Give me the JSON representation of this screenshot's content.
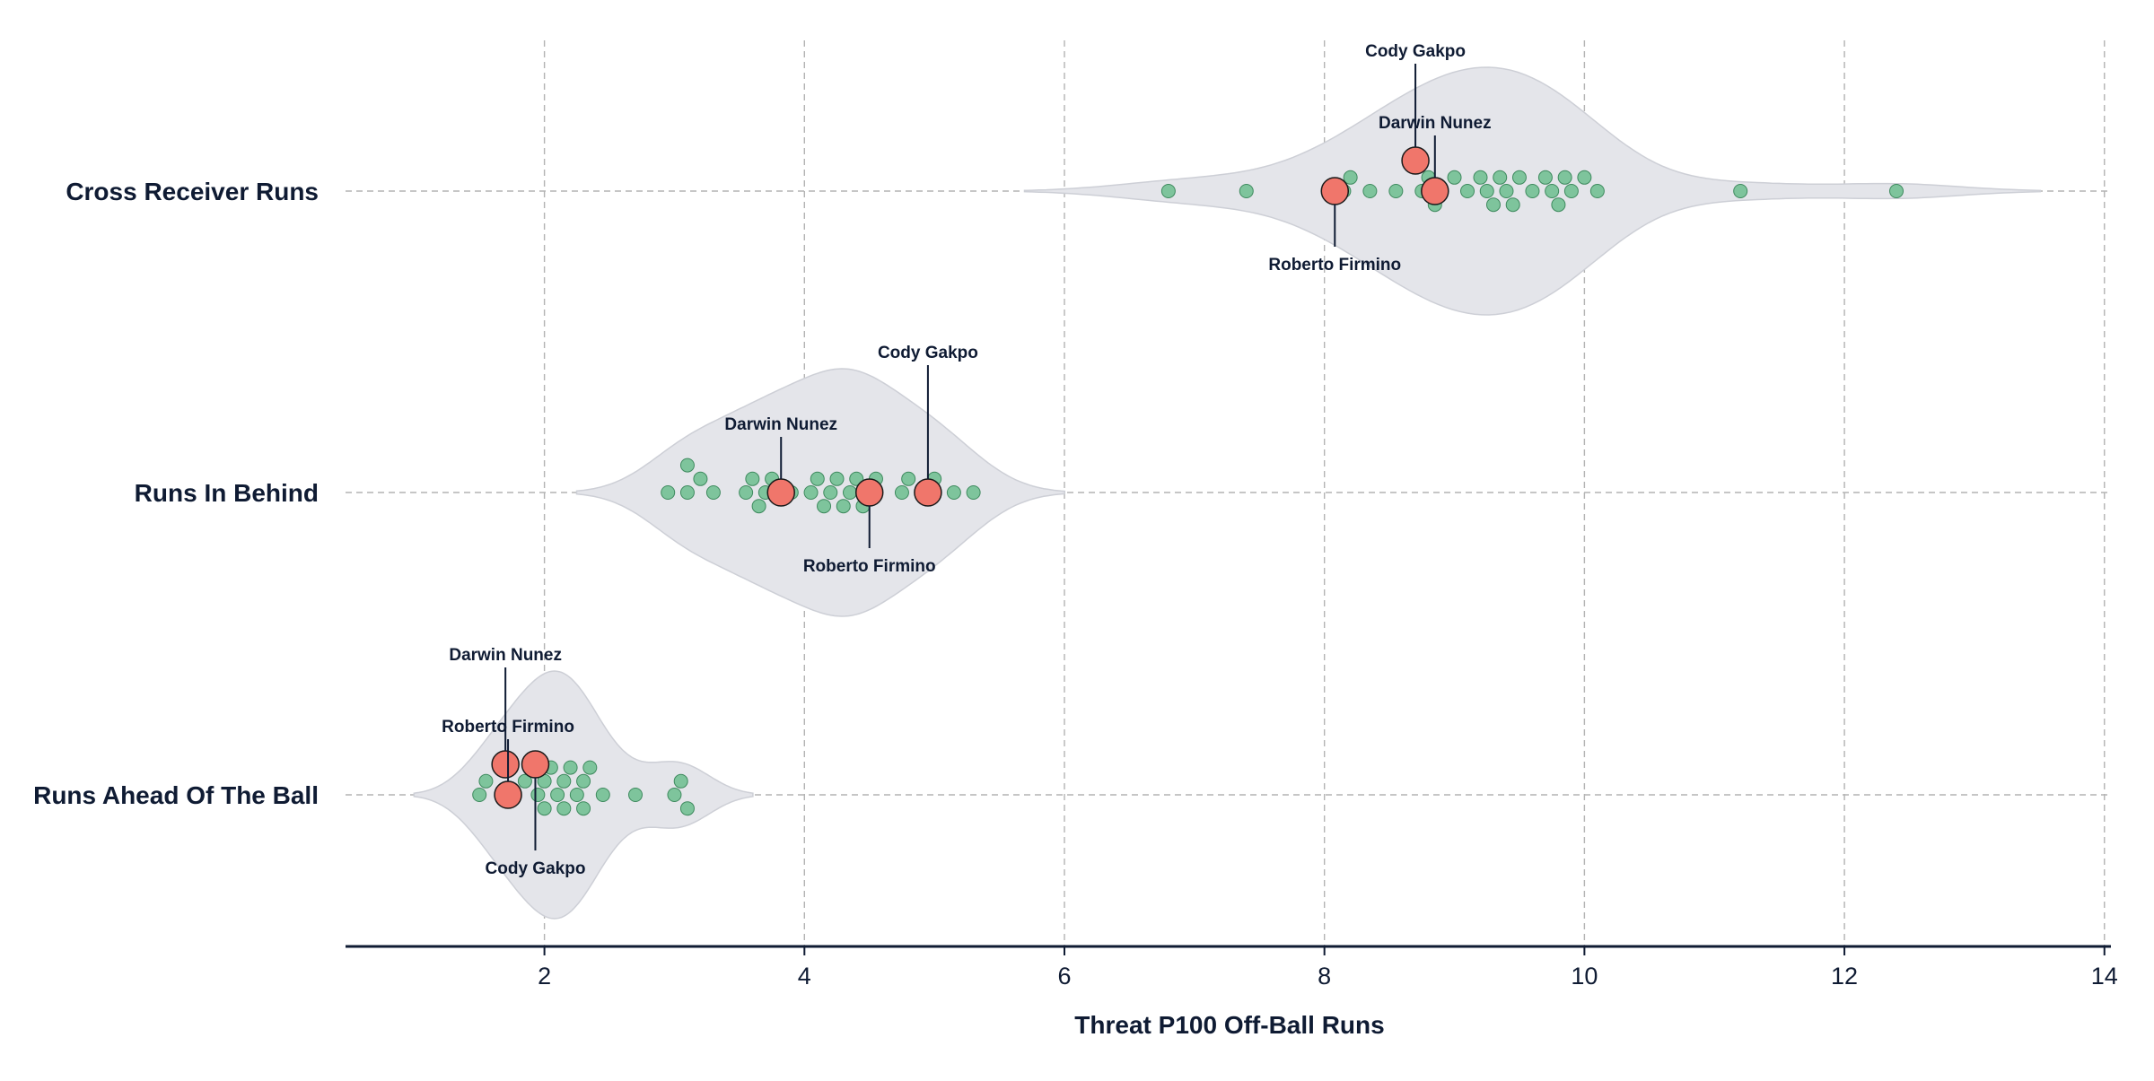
{
  "chart_data": {
    "type": "scatter",
    "subtype": "violin-swarm",
    "title": "",
    "xlabel": "Threat P100 Off-Ball Runs",
    "ylabel": "",
    "xlim": [
      0.47,
      14.05
    ],
    "xticks": [
      2,
      4,
      6,
      8,
      10,
      12,
      14
    ],
    "grid": true,
    "colors": {
      "swarm_fill": "#7ec49c",
      "swarm_edge": "#3e8a5e",
      "highlight_fill": "#f0766b",
      "highlight_edge": "#1a1a1a",
      "violin_fill": "#e4e5ea",
      "violin_edge": "#cdcfd6",
      "grid": "#b3b3b3",
      "text": "#0f1b33"
    },
    "categories": [
      "Cross Receiver Runs",
      "Runs In Behind",
      "Runs Ahead Of The Ball"
    ],
    "series": [
      {
        "category": "Cross Receiver Runs",
        "values": [
          6.8,
          7.4,
          8.15,
          8.2,
          8.35,
          8.55,
          8.75,
          8.8,
          8.85,
          8.9,
          9.0,
          9.1,
          9.2,
          9.25,
          9.3,
          9.35,
          9.4,
          9.45,
          9.5,
          9.6,
          9.7,
          9.75,
          9.8,
          9.85,
          9.9,
          10.0,
          10.1,
          11.2,
          12.4
        ],
        "highlights": [
          {
            "name": "Darwin Nunez",
            "value": 8.85
          },
          {
            "name": "Roberto Firmino",
            "value": 8.08
          },
          {
            "name": "Cody Gakpo",
            "value": 8.7
          }
        ]
      },
      {
        "category": "Runs In Behind",
        "values": [
          2.95,
          3.1,
          3.1,
          3.2,
          3.3,
          3.55,
          3.6,
          3.65,
          3.7,
          3.75,
          3.9,
          4.05,
          4.1,
          4.15,
          4.2,
          4.25,
          4.3,
          4.35,
          4.4,
          4.45,
          4.5,
          4.55,
          4.75,
          4.8,
          4.95,
          5.0,
          5.15,
          5.3
        ],
        "highlights": [
          {
            "name": "Darwin Nunez",
            "value": 3.82
          },
          {
            "name": "Roberto Firmino",
            "value": 4.5
          },
          {
            "name": "Cody Gakpo",
            "value": 4.95
          }
        ]
      },
      {
        "category": "Runs Ahead Of The Ball",
        "values": [
          1.5,
          1.55,
          1.75,
          1.85,
          1.95,
          2.0,
          2.0,
          2.05,
          2.1,
          2.15,
          2.15,
          2.2,
          2.25,
          2.3,
          2.3,
          2.35,
          2.45,
          2.7,
          3.0,
          3.05,
          3.1
        ],
        "highlights": [
          {
            "name": "Roberto Firmino",
            "value": 1.72
          },
          {
            "name": "Cody Gakpo",
            "value": 1.93
          },
          {
            "name": "Darwin Nunez",
            "value": 1.7
          }
        ]
      }
    ]
  }
}
